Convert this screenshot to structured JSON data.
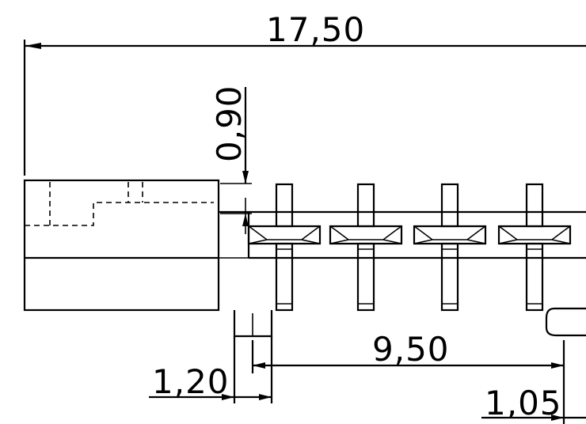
{
  "dimensions": {
    "overall_length": "17,50",
    "pin_height": "0,90",
    "pitch_span": "9,50",
    "peg_width": "1,20",
    "right_offset": "1,05"
  },
  "pins": {
    "count_visible": 4
  }
}
